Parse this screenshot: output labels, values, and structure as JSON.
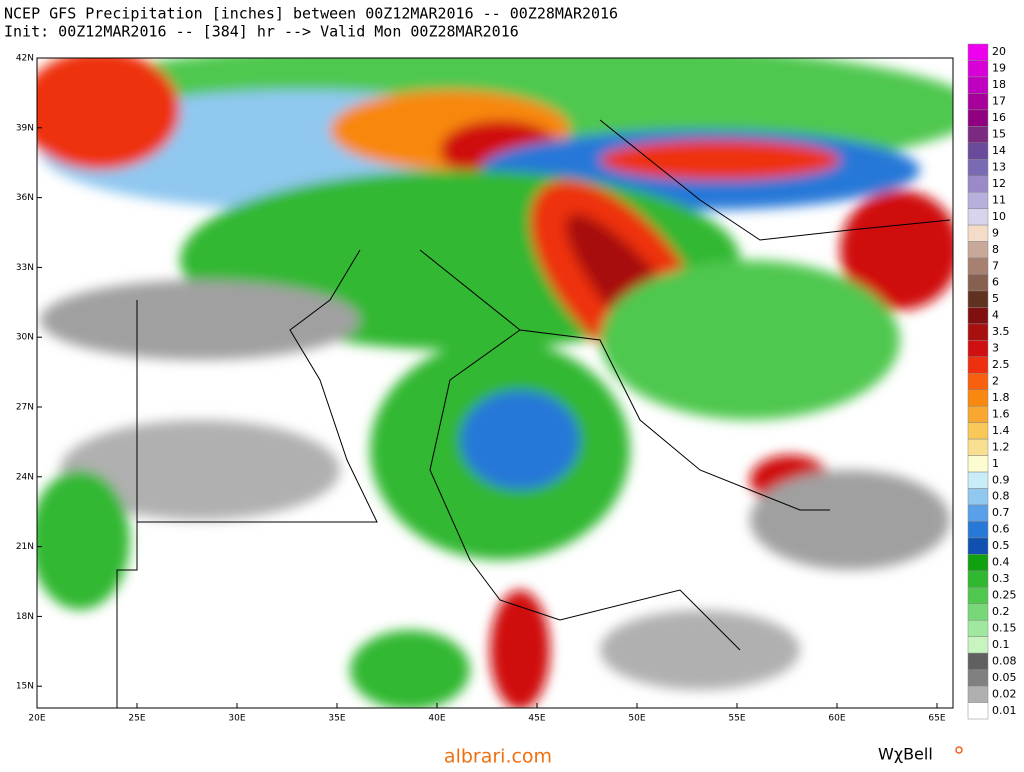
{
  "header": {
    "title_line1": "NCEP GFS Precipitation [inches] between 00Z12MAR2016 -- 00Z28MAR2016",
    "title_line2": "Init: 00Z12MAR2016 -- [384] hr --> Valid Mon 00Z28MAR2016"
  },
  "map": {
    "lat_labels": [
      "42N",
      "39N",
      "36N",
      "33N",
      "30N",
      "27N",
      "24N",
      "21N",
      "18N",
      "15N"
    ],
    "lon_labels": [
      "20E",
      "25E",
      "30E",
      "35E",
      "40E",
      "45E",
      "50E",
      "55E",
      "60E",
      "65E"
    ]
  },
  "legend": {
    "levels": [
      20,
      19,
      18,
      17,
      16,
      15,
      14,
      13,
      12,
      11,
      10,
      9,
      8,
      7,
      6,
      5,
      4,
      3.5,
      3,
      2.5,
      2,
      1.8,
      1.6,
      1.4,
      1.2,
      1,
      0.9,
      0.8,
      0.7,
      0.6,
      0.5,
      0.4,
      0.3,
      0.25,
      0.2,
      0.15,
      0.1,
      0.08,
      0.05,
      0.02,
      0.01
    ],
    "colors": [
      "#ee00ee",
      "#d800d8",
      "#c000c0",
      "#a8009a",
      "#900080",
      "#7a2a80",
      "#6a4a9a",
      "#7a6ab4",
      "#9a8ac8",
      "#b8b0dc",
      "#d8d4ee",
      "#f4dcc8",
      "#c8a898",
      "#a88070",
      "#886050",
      "#603020",
      "#801010",
      "#a81010",
      "#d01010",
      "#ee3010",
      "#f86010",
      "#f88810",
      "#f8a830",
      "#f8c858",
      "#f8e090",
      "#fcfcd0",
      "#c8ecf8",
      "#90c8f0",
      "#58a0e8",
      "#2878d8",
      "#1050b0",
      "#10a010",
      "#30b830",
      "#50c850",
      "#78d878",
      "#a0e8a0",
      "#c8f4c0",
      "#606060",
      "#808080",
      "#b0b0b0",
      "#ffffff"
    ]
  },
  "footer": {
    "source": "albrari.com",
    "brand": "WχBell"
  }
}
